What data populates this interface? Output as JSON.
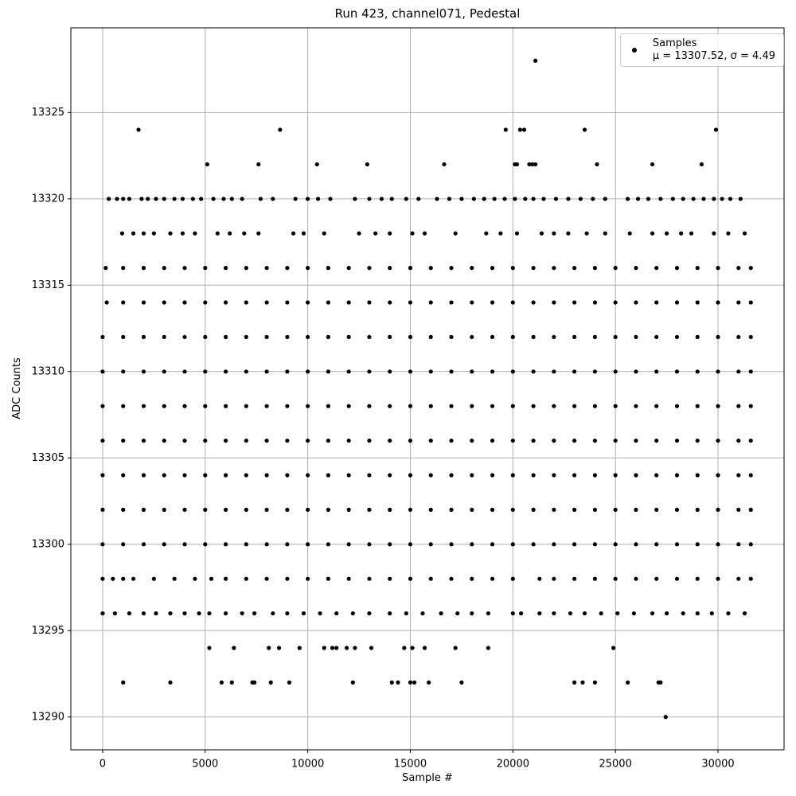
{
  "chart_data": {
    "type": "scatter",
    "title": "Run 423, channel071, Pedestal",
    "xlabel": "Sample #",
    "ylabel": "ADC Counts",
    "xlim": [
      -1550,
      33220
    ],
    "ylim": [
      13288.1,
      13329.9
    ],
    "xticks": [
      0,
      5000,
      10000,
      15000,
      20000,
      25000,
      30000
    ],
    "yticks": [
      13290,
      13295,
      13300,
      13305,
      13310,
      13315,
      13320,
      13325
    ],
    "grid": true,
    "legend": "upper right",
    "series": [
      {
        "name": "Samples\nμ = 13307.52, σ = 4.49",
        "color": "#000000",
        "x": [
          21100,
          1750,
          8650,
          19650,
          20350,
          20550,
          23500,
          29900,
          5100,
          7600,
          10450,
          12900,
          16650,
          20100,
          20200,
          20800,
          20950,
          21100,
          24100,
          26800,
          29200,
          300,
          700,
          1000,
          1300,
          1900,
          2200,
          2600,
          3000,
          3500,
          3900,
          4400,
          4800,
          5400,
          5900,
          6300,
          6800,
          7700,
          8300,
          9400,
          10000,
          10500,
          11100,
          12300,
          13000,
          13600,
          14100,
          14800,
          15400,
          16300,
          16900,
          17500,
          18100,
          18600,
          19100,
          19600,
          20100,
          20600,
          21000,
          21500,
          22100,
          22700,
          23300,
          23900,
          24500,
          25600,
          26100,
          26600,
          27200,
          27800,
          28300,
          28800,
          29300,
          29800,
          30200,
          30600,
          31100,
          950,
          1500,
          2000,
          2500,
          3300,
          3900,
          4500,
          5600,
          6200,
          6900,
          7600,
          9300,
          9800,
          10800,
          12500,
          13300,
          14000,
          15100,
          15700,
          17200,
          18700,
          19400,
          20200,
          21400,
          22000,
          22700,
          23600,
          24500,
          25700,
          26800,
          27500,
          28200,
          28700,
          29800,
          30500,
          31300,
          150,
          1000,
          2000,
          3000,
          4000,
          5000,
          6000,
          7000,
          8000,
          9000,
          10000,
          11000,
          12000,
          13000,
          14000,
          15000,
          16000,
          17000,
          18000,
          19000,
          20000,
          21000,
          22000,
          23000,
          24000,
          25000,
          26000,
          27000,
          28000,
          29000,
          30000,
          31000,
          31600,
          200,
          1000,
          2000,
          3000,
          4000,
          5000,
          6000,
          7000,
          8000,
          9000,
          10000,
          11000,
          12000,
          13000,
          14000,
          15000,
          16000,
          17000,
          18000,
          19000,
          20000,
          21000,
          22000,
          23000,
          24000,
          25000,
          26000,
          27000,
          28000,
          29000,
          30000,
          31000,
          31600,
          0,
          1000,
          2000,
          3000,
          4000,
          5000,
          6000,
          7000,
          8000,
          9000,
          10000,
          11000,
          12000,
          13000,
          14000,
          15000,
          16000,
          17000,
          18000,
          19000,
          20000,
          21000,
          22000,
          23000,
          24000,
          25000,
          26000,
          27000,
          28000,
          29000,
          30000,
          31000,
          31600,
          0,
          1000,
          2000,
          3000,
          4000,
          5000,
          6000,
          7000,
          8000,
          9000,
          10000,
          11000,
          12000,
          13000,
          14000,
          15000,
          16000,
          17000,
          18000,
          19000,
          20000,
          21000,
          22000,
          23000,
          24000,
          25000,
          26000,
          27000,
          28000,
          29000,
          30000,
          31000,
          31600,
          0,
          1000,
          2000,
          3000,
          4000,
          5000,
          6000,
          7000,
          8000,
          9000,
          10000,
          11000,
          12000,
          13000,
          14000,
          15000,
          16000,
          17000,
          18000,
          19000,
          20000,
          21000,
          22000,
          23000,
          24000,
          25000,
          26000,
          27000,
          28000,
          29000,
          30000,
          31000,
          31600,
          0,
          1000,
          2000,
          3000,
          4000,
          5000,
          6000,
          7000,
          8000,
          9000,
          10000,
          11000,
          12000,
          13000,
          14000,
          15000,
          16000,
          17000,
          18000,
          19000,
          20000,
          21000,
          22000,
          23000,
          24000,
          25000,
          26000,
          27000,
          28000,
          29000,
          30000,
          31000,
          31600,
          0,
          1000,
          2000,
          3000,
          4000,
          5000,
          6000,
          7000,
          8000,
          9000,
          10000,
          11000,
          12000,
          13000,
          14000,
          15000,
          16000,
          17000,
          18000,
          19000,
          20000,
          21000,
          22000,
          23000,
          24000,
          25000,
          26000,
          27000,
          28000,
          29000,
          30000,
          31000,
          31600,
          0,
          1000,
          2000,
          3000,
          4000,
          5000,
          6000,
          7000,
          8000,
          9000,
          10000,
          11000,
          12000,
          13000,
          14000,
          15000,
          16000,
          17000,
          18000,
          19000,
          20000,
          21000,
          22000,
          23000,
          24000,
          25000,
          26000,
          27000,
          28000,
          29000,
          30000,
          31000,
          31600,
          0,
          1000,
          2000,
          3000,
          4000,
          5000,
          6000,
          7000,
          8000,
          9000,
          10000,
          11000,
          12000,
          13000,
          14000,
          15000,
          16000,
          17000,
          18000,
          19000,
          20000,
          21000,
          22000,
          23000,
          24000,
          25000,
          26000,
          27000,
          28000,
          29000,
          30000,
          31000,
          31600,
          0,
          500,
          1000,
          1500,
          2500,
          3500,
          4500,
          5300,
          6000,
          7000,
          8000,
          9000,
          10000,
          11000,
          12000,
          13000,
          14000,
          15000,
          16000,
          17000,
          18000,
          19000,
          20000,
          21300,
          22000,
          23000,
          24000,
          25000,
          26000,
          27000,
          28000,
          29000,
          30000,
          31000,
          31600,
          0,
          600,
          1300,
          2000,
          2600,
          3300,
          4000,
          4700,
          5200,
          6000,
          6800,
          7400,
          8300,
          9000,
          9800,
          10600,
          11400,
          12200,
          13000,
          14000,
          14800,
          15600,
          16500,
          17300,
          18000,
          18800,
          20000,
          20400,
          21300,
          22000,
          22800,
          23500,
          24300,
          25100,
          25900,
          26800,
          27500,
          28300,
          29000,
          29700,
          30500,
          31300,
          5200,
          6400,
          8100,
          8600,
          9600,
          10800,
          11200,
          11400,
          11900,
          12300,
          13100,
          14700,
          15100,
          15700,
          17200,
          18800,
          24900,
          1000,
          3300,
          5800,
          6300,
          7300,
          7400,
          8200,
          9100,
          12200,
          14100,
          14400,
          15000,
          15200,
          15900,
          17500,
          23000,
          23400,
          24000,
          25600,
          27100,
          27200,
          27450
        ],
        "values": [
          13328,
          13324,
          13324,
          13324,
          13324,
          13324,
          13324,
          13324,
          13322,
          13322,
          13322,
          13322,
          13322,
          13322,
          13322,
          13322,
          13322,
          13322,
          13322,
          13322,
          13322,
          13320,
          13320,
          13320,
          13320,
          13320,
          13320,
          13320,
          13320,
          13320,
          13320,
          13320,
          13320,
          13320,
          13320,
          13320,
          13320,
          13320,
          13320,
          13320,
          13320,
          13320,
          13320,
          13320,
          13320,
          13320,
          13320,
          13320,
          13320,
          13320,
          13320,
          13320,
          13320,
          13320,
          13320,
          13320,
          13320,
          13320,
          13320,
          13320,
          13320,
          13320,
          13320,
          13320,
          13320,
          13320,
          13320,
          13320,
          13320,
          13320,
          13320,
          13320,
          13320,
          13320,
          13320,
          13320,
          13320,
          13318,
          13318,
          13318,
          13318,
          13318,
          13318,
          13318,
          13318,
          13318,
          13318,
          13318,
          13318,
          13318,
          13318,
          13318,
          13318,
          13318,
          13318,
          13318,
          13318,
          13318,
          13318,
          13318,
          13318,
          13318,
          13318,
          13318,
          13318,
          13318,
          13318,
          13318,
          13318,
          13318,
          13318,
          13318,
          13318,
          13316,
          13316,
          13316,
          13316,
          13316,
          13316,
          13316,
          13316,
          13316,
          13316,
          13316,
          13316,
          13316,
          13316,
          13316,
          13316,
          13316,
          13316,
          13316,
          13316,
          13316,
          13316,
          13316,
          13316,
          13316,
          13316,
          13316,
          13316,
          13316,
          13316,
          13316,
          13316,
          13316,
          13314,
          13314,
          13314,
          13314,
          13314,
          13314,
          13314,
          13314,
          13314,
          13314,
          13314,
          13314,
          13314,
          13314,
          13314,
          13314,
          13314,
          13314,
          13314,
          13314,
          13314,
          13314,
          13314,
          13314,
          13314,
          13314,
          13314,
          13314,
          13314,
          13314,
          13314,
          13314,
          13314,
          13312,
          13312,
          13312,
          13312,
          13312,
          13312,
          13312,
          13312,
          13312,
          13312,
          13312,
          13312,
          13312,
          13312,
          13312,
          13312,
          13312,
          13312,
          13312,
          13312,
          13312,
          13312,
          13312,
          13312,
          13312,
          13312,
          13312,
          13312,
          13312,
          13312,
          13312,
          13312,
          13312,
          13310,
          13310,
          13310,
          13310,
          13310,
          13310,
          13310,
          13310,
          13310,
          13310,
          13310,
          13310,
          13310,
          13310,
          13310,
          13310,
          13310,
          13310,
          13310,
          13310,
          13310,
          13310,
          13310,
          13310,
          13310,
          13310,
          13310,
          13310,
          13310,
          13310,
          13310,
          13310,
          13310,
          13308,
          13308,
          13308,
          13308,
          13308,
          13308,
          13308,
          13308,
          13308,
          13308,
          13308,
          13308,
          13308,
          13308,
          13308,
          13308,
          13308,
          13308,
          13308,
          13308,
          13308,
          13308,
          13308,
          13308,
          13308,
          13308,
          13308,
          13308,
          13308,
          13308,
          13308,
          13308,
          13308,
          13306,
          13306,
          13306,
          13306,
          13306,
          13306,
          13306,
          13306,
          13306,
          13306,
          13306,
          13306,
          13306,
          13306,
          13306,
          13306,
          13306,
          13306,
          13306,
          13306,
          13306,
          13306,
          13306,
          13306,
          13306,
          13306,
          13306,
          13306,
          13306,
          13306,
          13306,
          13306,
          13306,
          13304,
          13304,
          13304,
          13304,
          13304,
          13304,
          13304,
          13304,
          13304,
          13304,
          13304,
          13304,
          13304,
          13304,
          13304,
          13304,
          13304,
          13304,
          13304,
          13304,
          13304,
          13304,
          13304,
          13304,
          13304,
          13304,
          13304,
          13304,
          13304,
          13304,
          13304,
          13304,
          13304,
          13302,
          13302,
          13302,
          13302,
          13302,
          13302,
          13302,
          13302,
          13302,
          13302,
          13302,
          13302,
          13302,
          13302,
          13302,
          13302,
          13302,
          13302,
          13302,
          13302,
          13302,
          13302,
          13302,
          13302,
          13302,
          13302,
          13302,
          13302,
          13302,
          13302,
          13302,
          13302,
          13302,
          13300,
          13300,
          13300,
          13300,
          13300,
          13300,
          13300,
          13300,
          13300,
          13300,
          13300,
          13300,
          13300,
          13300,
          13300,
          13300,
          13300,
          13300,
          13300,
          13300,
          13300,
          13300,
          13300,
          13300,
          13300,
          13300,
          13300,
          13300,
          13300,
          13300,
          13300,
          13300,
          13300,
          13298,
          13298,
          13298,
          13298,
          13298,
          13298,
          13298,
          13298,
          13298,
          13298,
          13298,
          13298,
          13298,
          13298,
          13298,
          13298,
          13298,
          13298,
          13298,
          13298,
          13298,
          13298,
          13298,
          13298,
          13298,
          13298,
          13298,
          13298,
          13298,
          13298,
          13298,
          13298,
          13298,
          13298,
          13298,
          13296,
          13296,
          13296,
          13296,
          13296,
          13296,
          13296,
          13296,
          13296,
          13296,
          13296,
          13296,
          13296,
          13296,
          13296,
          13296,
          13296,
          13296,
          13296,
          13296,
          13296,
          13296,
          13296,
          13296,
          13296,
          13296,
          13296,
          13296,
          13296,
          13296,
          13296,
          13296,
          13296,
          13296,
          13296,
          13296,
          13296,
          13296,
          13296,
          13296,
          13296,
          13296,
          13294,
          13294,
          13294,
          13294,
          13294,
          13294,
          13294,
          13294,
          13294,
          13294,
          13294,
          13294,
          13294,
          13294,
          13294,
          13294,
          13294,
          13292,
          13292,
          13292,
          13292,
          13292,
          13292,
          13292,
          13292,
          13292,
          13292,
          13292,
          13292,
          13292,
          13292,
          13292,
          13292,
          13292,
          13292,
          13292,
          13292,
          13292,
          13290
        ]
      }
    ]
  }
}
